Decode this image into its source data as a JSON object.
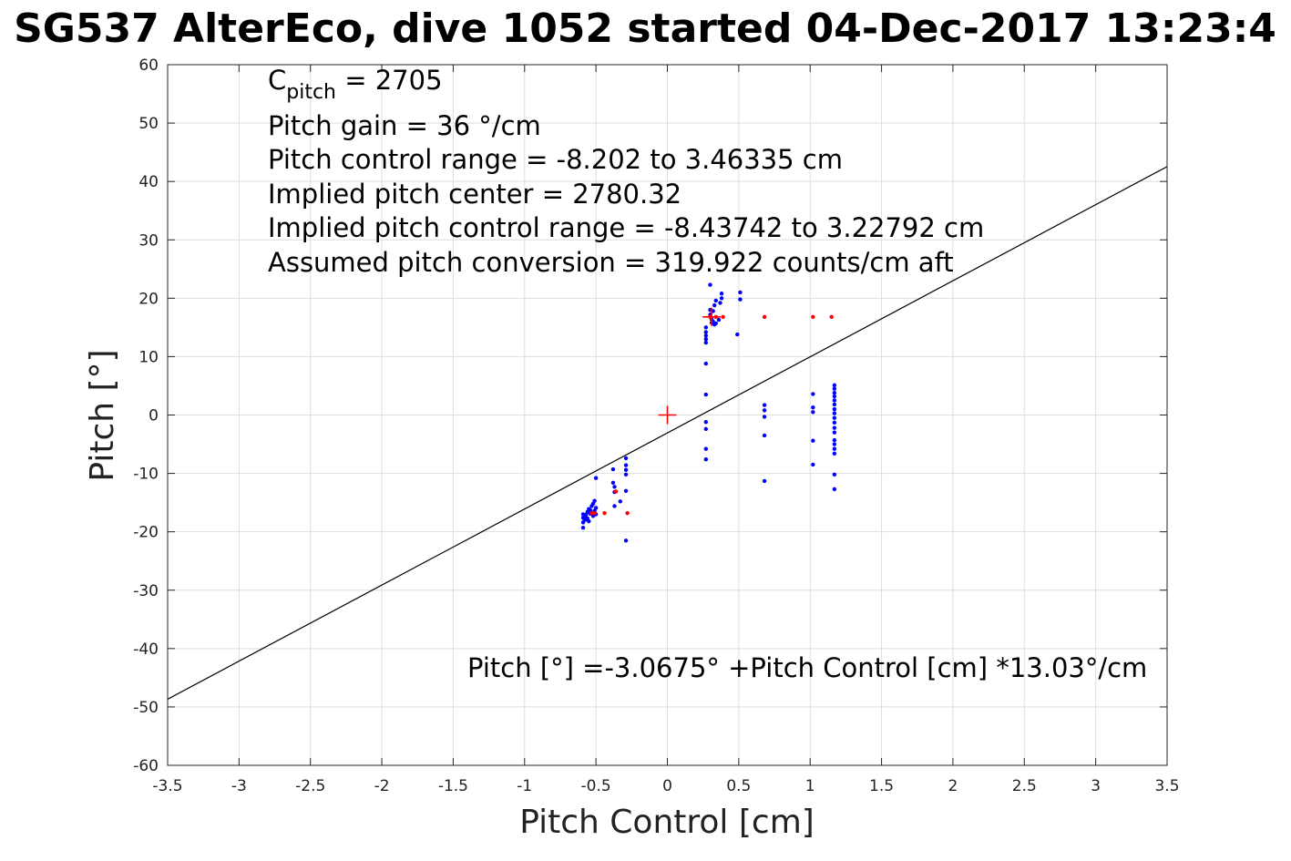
{
  "chart_data": {
    "type": "scatter",
    "title": "SG537 AlterEco, dive 1052 started 04-Dec-2017 13:23:4",
    "xlabel": "Pitch Control [cm]",
    "ylabel": "Pitch [°]",
    "xlim": [
      -3.5,
      3.5
    ],
    "ylim": [
      -60,
      60
    ],
    "grid": true,
    "x_ticks": [
      -3.5,
      -3,
      -2.5,
      -2,
      -1.5,
      -1,
      -0.5,
      0,
      0.5,
      1,
      1.5,
      2,
      2.5,
      3,
      3.5
    ],
    "y_ticks": [
      -60,
      -50,
      -40,
      -30,
      -20,
      -10,
      0,
      10,
      20,
      30,
      40,
      50,
      60
    ],
    "x_tick_labels": [
      "-3.5",
      "-3",
      "-2.5",
      "-2",
      "-1.5",
      "-1",
      "-0.5",
      "0",
      "0.5",
      "1",
      "1.5",
      "2",
      "2.5",
      "3",
      "3.5"
    ],
    "y_tick_labels": [
      "-60",
      "-50",
      "-40",
      "-30",
      "-20",
      "-10",
      "0",
      "10",
      "20",
      "30",
      "40",
      "50",
      "60"
    ],
    "annotations": {
      "c_pitch_base": "C",
      "c_pitch_sub": "pitch",
      "c_pitch_rest": " = 2705",
      "pitch_gain": "Pitch gain = 36 °/cm",
      "control_range": "Pitch control range = -8.202 to 3.46335 cm",
      "implied_center": "Implied pitch center = 2780.32",
      "implied_range": "Implied pitch control range = -8.43742 to 3.22792 cm",
      "conversion": "Assumed pitch conversion = 319.922 counts/cm aft",
      "fit_equation": "Pitch [°] =-3.0675° +Pitch Control [cm] *13.03°/cm"
    },
    "fit_line": {
      "intercept": -3.0675,
      "slope": 13.03,
      "color": "#000000"
    },
    "center_marker": {
      "x": 0,
      "y": 0,
      "color": "#ff0000"
    },
    "mean_marker": {
      "x": 0.31,
      "y": 16.8,
      "color": "#ff0000"
    },
    "series": [
      {
        "color": "#0000ff",
        "points": [
          [
            -0.59,
            -19.3
          ],
          [
            -0.59,
            -18.4
          ],
          [
            -0.59,
            -17.6
          ],
          [
            -0.59,
            -17.0
          ],
          [
            -0.58,
            -18.0
          ],
          [
            -0.58,
            -17.4
          ],
          [
            -0.57,
            -17.9
          ],
          [
            -0.57,
            -17.1
          ],
          [
            -0.56,
            -16.6
          ],
          [
            -0.56,
            -17.7
          ],
          [
            -0.55,
            -18.2
          ],
          [
            -0.55,
            -16.1
          ],
          [
            -0.54,
            -16.9
          ],
          [
            -0.54,
            -16.3
          ],
          [
            -0.53,
            -15.6
          ],
          [
            -0.53,
            -16.8
          ],
          [
            -0.52,
            -17.3
          ],
          [
            -0.52,
            -15.2
          ],
          [
            -0.51,
            -16.4
          ],
          [
            -0.51,
            -14.7
          ],
          [
            -0.5,
            -15.9
          ],
          [
            -0.5,
            -17.0
          ],
          [
            -0.5,
            -10.8
          ],
          [
            -0.38,
            -9.3
          ],
          [
            -0.38,
            -11.6
          ],
          [
            -0.37,
            -12.3
          ],
          [
            -0.37,
            -13.2
          ],
          [
            -0.37,
            -15.6
          ],
          [
            -0.33,
            -14.8
          ],
          [
            -0.29,
            -7.4
          ],
          [
            -0.29,
            -8.6
          ],
          [
            -0.29,
            -9.4
          ],
          [
            -0.29,
            -10.2
          ],
          [
            -0.29,
            -13.0
          ],
          [
            -0.29,
            -21.5
          ],
          [
            0.27,
            15.0
          ],
          [
            0.27,
            14.2
          ],
          [
            0.27,
            13.6
          ],
          [
            0.27,
            13.0
          ],
          [
            0.27,
            12.4
          ],
          [
            0.27,
            8.8
          ],
          [
            0.27,
            3.5
          ],
          [
            0.27,
            -1.2
          ],
          [
            0.27,
            -2.4
          ],
          [
            0.27,
            -5.8
          ],
          [
            0.27,
            -7.6
          ],
          [
            0.3,
            22.3
          ],
          [
            0.3,
            18.0
          ],
          [
            0.3,
            17.2
          ],
          [
            0.31,
            16.4
          ],
          [
            0.31,
            15.8
          ],
          [
            0.32,
            17.8
          ],
          [
            0.32,
            16.0
          ],
          [
            0.33,
            15.5
          ],
          [
            0.33,
            18.8
          ],
          [
            0.34,
            15.7
          ],
          [
            0.34,
            19.6
          ],
          [
            0.36,
            16.3
          ],
          [
            0.37,
            19.2
          ],
          [
            0.38,
            20.0
          ],
          [
            0.38,
            20.8
          ],
          [
            0.49,
            13.8
          ],
          [
            0.51,
            21.0
          ],
          [
            0.51,
            19.8
          ],
          [
            0.68,
            1.7
          ],
          [
            0.68,
            0.8
          ],
          [
            0.68,
            -0.3
          ],
          [
            0.68,
            -3.5
          ],
          [
            0.68,
            -11.3
          ],
          [
            1.02,
            3.6
          ],
          [
            1.02,
            1.3
          ],
          [
            1.02,
            0.5
          ],
          [
            1.02,
            -4.4
          ],
          [
            1.02,
            -8.5
          ],
          [
            1.17,
            5.1
          ],
          [
            1.17,
            4.5
          ],
          [
            1.17,
            3.8
          ],
          [
            1.17,
            3.2
          ],
          [
            1.17,
            2.5
          ],
          [
            1.17,
            1.8
          ],
          [
            1.17,
            1.0
          ],
          [
            1.17,
            0.3
          ],
          [
            1.17,
            -0.5
          ],
          [
            1.17,
            -1.3
          ],
          [
            1.17,
            -2.2
          ],
          [
            1.17,
            -3.0
          ],
          [
            1.17,
            -4.3
          ],
          [
            1.17,
            -5.0
          ],
          [
            1.17,
            -5.8
          ],
          [
            1.17,
            -6.6
          ],
          [
            1.17,
            -10.2
          ],
          [
            1.17,
            -12.7
          ]
        ]
      },
      {
        "color": "#ff0000",
        "points": [
          [
            -0.53,
            -16.8
          ],
          [
            -0.51,
            -16.8
          ],
          [
            -0.44,
            -16.8
          ],
          [
            -0.36,
            -13.1
          ],
          [
            -0.28,
            -16.8
          ],
          [
            0.3,
            16.8
          ],
          [
            0.34,
            16.8
          ],
          [
            0.39,
            16.8
          ],
          [
            0.68,
            16.8
          ],
          [
            1.02,
            16.8
          ],
          [
            1.15,
            16.8
          ]
        ]
      }
    ]
  }
}
